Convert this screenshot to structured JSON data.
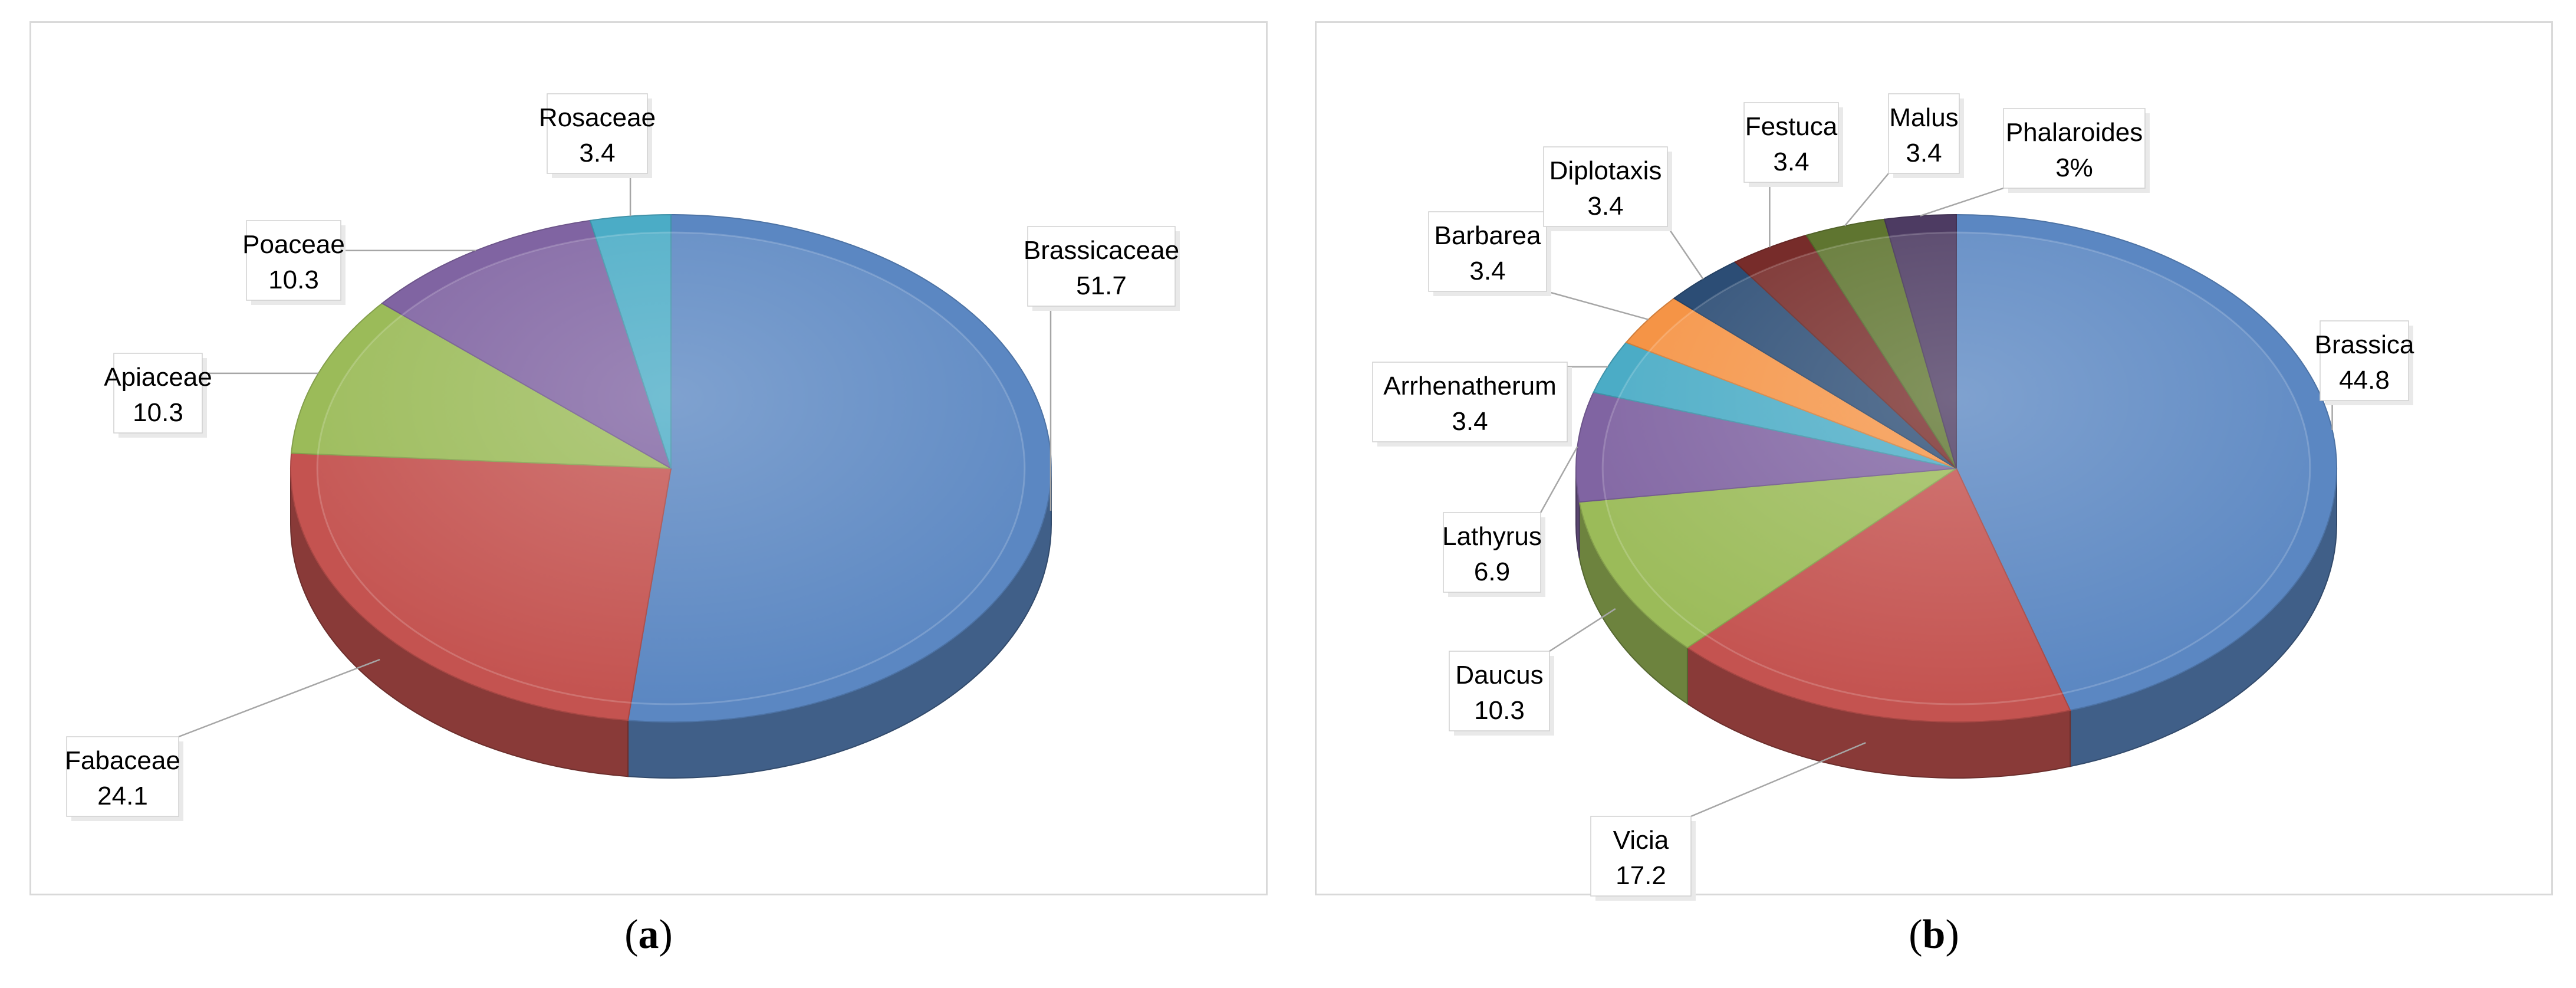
{
  "panels": [
    {
      "caption_letter": "a",
      "chart_data": {
        "type": "pie",
        "title": "",
        "labels": [
          "Brassicaceae",
          "Fabaceae",
          "Apiaceae",
          "Poaceae",
          "Rosaceae"
        ],
        "values": [
          51.7,
          24.1,
          10.3,
          10.3,
          3.4
        ],
        "value_labels": [
          "51.7",
          "24.1",
          "10.3",
          "10.3",
          "3.4"
        ],
        "colors": [
          "#5b87c2",
          "#c45350",
          "#9bbb59",
          "#8064a2",
          "#4bacc6"
        ],
        "legend": "none",
        "style": "3d"
      }
    },
    {
      "caption_letter": "b",
      "chart_data": {
        "type": "pie",
        "title": "",
        "labels": [
          "Brassica",
          "Vicia",
          "Daucus",
          "Lathyrus",
          "Arrhenatherum",
          "Barbarea",
          "Diplotaxis",
          "Festuca",
          "Malus",
          "Phalaroides"
        ],
        "values": [
          44.8,
          17.2,
          10.3,
          6.9,
          3.4,
          3.4,
          3.4,
          3.4,
          3.4,
          3
        ],
        "value_labels": [
          "44.8",
          "17.2",
          "10.3",
          "6.9",
          "3.4",
          "3.4",
          "3.4",
          "3.4",
          "3.4",
          "3%"
        ],
        "colors": [
          "#5b87c2",
          "#c45350",
          "#9bbb59",
          "#8064a2",
          "#4bacc6",
          "#f59446",
          "#2c4d75",
          "#772c2a",
          "#5f7530",
          "#4d3b62"
        ],
        "legend": "none",
        "style": "3d"
      }
    }
  ]
}
